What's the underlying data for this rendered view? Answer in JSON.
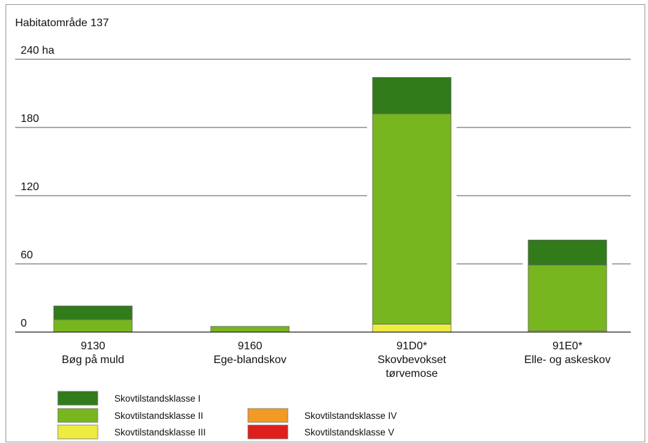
{
  "chart_data": {
    "type": "bar",
    "stacked": true,
    "title": "Habitatområde 137",
    "ylim": [
      0,
      240
    ],
    "y_ticks": [
      "0",
      "60",
      "120",
      "180",
      "240 ha"
    ],
    "y_tick_values": [
      0,
      60,
      120,
      180,
      240
    ],
    "grid": true,
    "legend_position": "bottom",
    "categories": [
      [
        "9130",
        "Bøg på muld"
      ],
      [
        "9160",
        "Ege-blandskov"
      ],
      [
        "91D0*",
        "Skovbevokset",
        "tørvemose"
      ],
      [
        "91E0*",
        "Elle- og askeskov"
      ]
    ],
    "series": [
      {
        "name": "Skovtilstandsklasse V",
        "color": "#de1f1c",
        "values": [
          0,
          0,
          0,
          0
        ]
      },
      {
        "name": "Skovtilstandsklasse IV",
        "color": "#f19a25",
        "values": [
          0,
          0,
          0,
          0
        ]
      },
      {
        "name": "Skovtilstandsklasse III",
        "color": "#eeec3f",
        "values": [
          0,
          0,
          7,
          1
        ]
      },
      {
        "name": "Skovtilstandsklasse II",
        "color": "#77b61e",
        "values": [
          11,
          5,
          185,
          58
        ]
      },
      {
        "name": "Skovtilstandsklasse I",
        "color": "#317b1a",
        "values": [
          12,
          0,
          32,
          22
        ]
      }
    ],
    "legend": [
      {
        "label": "Skovtilstandsklasse I",
        "color": "#317b1a"
      },
      {
        "label": "Skovtilstandsklasse II",
        "color": "#77b61e"
      },
      {
        "label": "Skovtilstandsklasse III",
        "color": "#eeec3f"
      },
      {
        "label": "Skovtilstandsklasse IV",
        "color": "#f19a25"
      },
      {
        "label": "Skovtilstandsklasse V",
        "color": "#de1f1c"
      }
    ]
  }
}
